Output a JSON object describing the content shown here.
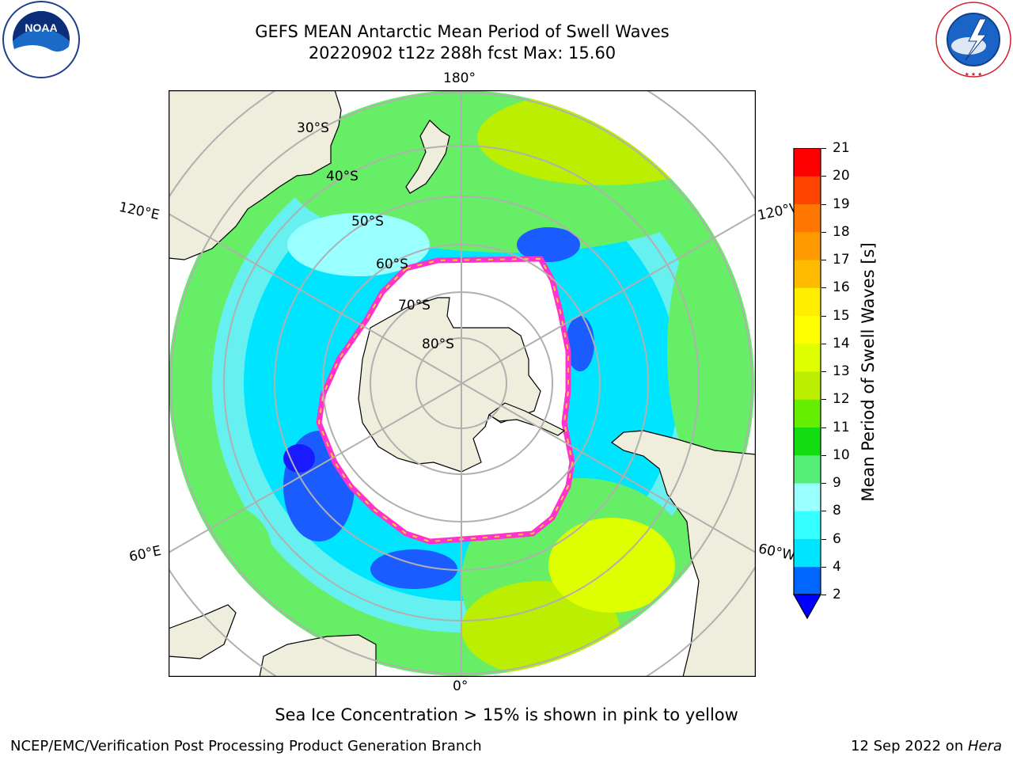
{
  "header": {
    "title_line1": "GEFS MEAN Antarctic Mean Period of Swell Waves",
    "title_line2": "20220902 t12z 288h fcst   Max: 15.60"
  },
  "logos": {
    "left": {
      "icon": "noaa-logo",
      "label": "NOAA"
    },
    "right": {
      "icon": "nws-logo",
      "label": "NATIONAL WEATHER SERVICE"
    }
  },
  "map": {
    "projection": "south-polar-stereographic",
    "longitude_labels": {
      "top": "180°",
      "bottom": "0°",
      "left_upper": "120°E",
      "left_lower": "60°E",
      "right_upper": "120°W",
      "right_lower": "60°W"
    },
    "latitude_labels": [
      "30°S",
      "40°S",
      "50°S",
      "60°S",
      "70°S",
      "80°S"
    ],
    "colors": {
      "land": "#efeedc",
      "ice_edge_pink": "#ff33cc",
      "ice_edge_yellow": "#ffcc33",
      "grid": "#b0b0b0"
    }
  },
  "colorbar": {
    "label": "Mean Period of Swell Waves [s]",
    "ticks": [
      "21",
      "20",
      "19",
      "18",
      "17",
      "16",
      "15",
      "14",
      "13",
      "12",
      "11",
      "10",
      "9",
      "8",
      "6",
      "4",
      "2"
    ],
    "colors_bottom_to_top": [
      "#0066ff",
      "#00e5ff",
      "#33ffff",
      "#99ffff",
      "#55ee77",
      "#11dd11",
      "#66ee00",
      "#bbee00",
      "#ddff00",
      "#ffff00",
      "#ffee00",
      "#ffbb00",
      "#ff9900",
      "#ff7700",
      "#ff4400",
      "#ff0000"
    ],
    "extend_min_color": "#0000ff"
  },
  "footer": {
    "note": "Sea Ice Concentration > 15% is shown in pink to yellow",
    "left": "NCEP/EMC/Verification Post Processing Product Generation Branch",
    "right_prefix": "12 Sep 2022 on ",
    "right_host": "Hera"
  }
}
